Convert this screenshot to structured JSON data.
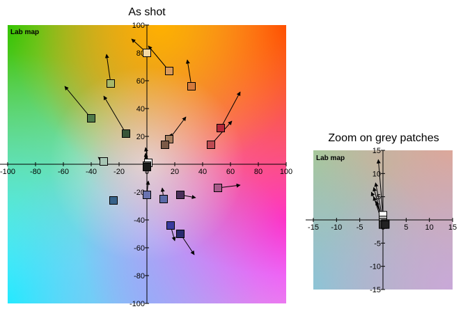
{
  "chart_data": [
    {
      "type": "scatter",
      "title": "As shot",
      "label": "Lab map",
      "xlim": [
        -100,
        100
      ],
      "ylim": [
        -100,
        100
      ],
      "xticks": [
        -100,
        -80,
        -60,
        -40,
        -20,
        0,
        20,
        40,
        60,
        80,
        100
      ],
      "yticks": [
        -100,
        -80,
        -60,
        -40,
        -20,
        20,
        40,
        60,
        80,
        100
      ],
      "grid": false,
      "points": [
        {
          "x": 0,
          "y": 80,
          "ax": -11,
          "ay": 90,
          "color": "#f3d9a4"
        },
        {
          "x": 16,
          "y": 67,
          "ax": 1,
          "ay": 85,
          "color": "#d99a5a"
        },
        {
          "x": 32,
          "y": 56,
          "ax": 29,
          "ay": 75,
          "color": "#d47a3c"
        },
        {
          "x": -26,
          "y": 58,
          "ax": -29,
          "ay": 79,
          "color": "#a7b86a"
        },
        {
          "x": -40,
          "y": 33,
          "ax": -59,
          "ay": 56,
          "color": "#4f7a4a"
        },
        {
          "x": -15,
          "y": 22,
          "ax": -31,
          "ay": 49,
          "color": "#395539"
        },
        {
          "x": 53,
          "y": 26,
          "ax": 67,
          "ay": 52,
          "color": "#b52838"
        },
        {
          "x": 46,
          "y": 14,
          "ax": 61,
          "ay": 31,
          "color": "#bd4a52"
        },
        {
          "x": 16,
          "y": 18,
          "ax": 28,
          "ay": 34,
          "color": "#a88060"
        },
        {
          "x": 13,
          "y": 14,
          "ax": 18,
          "ay": 22,
          "color": "#7b5a47"
        },
        {
          "x": -31,
          "y": 2,
          "ax": -35,
          "ay": 5,
          "color": "#a7c6b4"
        },
        {
          "x": 1,
          "y": 1,
          "ax": -1,
          "ay": 12,
          "color": "#ffffff"
        },
        {
          "x": 0,
          "y": -1,
          "ax": -1,
          "ay": 8,
          "color": "#6a6a6a"
        },
        {
          "x": 0,
          "y": -2,
          "ax": -1,
          "ay": 6,
          "color": "#1a1a1a"
        },
        {
          "x": 51,
          "y": -17,
          "ax": 67,
          "ay": -15,
          "color": "#a85a8a"
        },
        {
          "x": 24,
          "y": -22,
          "ax": 35,
          "ay": -24,
          "color": "#4a2f5a"
        },
        {
          "x": 0,
          "y": -22,
          "ax": 1,
          "ay": -12,
          "color": "#6a73b0"
        },
        {
          "x": 12,
          "y": -25,
          "ax": 11,
          "ay": -17,
          "color": "#5a6aa8"
        },
        {
          "x": -24,
          "y": -26,
          "ax": -24,
          "ay": -26,
          "color": "#37628a"
        },
        {
          "x": 17,
          "y": -44,
          "ax": 20,
          "ay": -55,
          "color": "#3a3a9e"
        },
        {
          "x": 24,
          "y": -50,
          "ax": 34,
          "ay": -65,
          "color": "#2a2a70"
        }
      ]
    },
    {
      "type": "scatter",
      "title": "Zoom on grey patches",
      "label": "Lab map",
      "xlim": [
        -15,
        15
      ],
      "ylim": [
        -15,
        15
      ],
      "xticks": [
        -15,
        -10,
        -5,
        0,
        5,
        10,
        15
      ],
      "yticks": [
        -15,
        -10,
        -5,
        5,
        10,
        15
      ],
      "grid": false,
      "points": [
        {
          "x": 0,
          "y": 1,
          "ax": -1,
          "ay": 13,
          "color": "#ffffff"
        },
        {
          "x": 0,
          "y": 0,
          "ax": -1.6,
          "ay": 8,
          "color": "#d0d0d0"
        },
        {
          "x": 0,
          "y": -0.5,
          "ax": -2,
          "ay": 7,
          "color": "#a0a0a0"
        },
        {
          "x": 0.5,
          "y": -0.8,
          "ax": -2.5,
          "ay": 6,
          "color": "#6a6a6a"
        },
        {
          "x": 0,
          "y": -1,
          "ax": -2,
          "ay": 5,
          "color": "#404040"
        },
        {
          "x": 0.5,
          "y": -1,
          "ax": -1.5,
          "ay": 4,
          "color": "#222222"
        }
      ]
    }
  ]
}
